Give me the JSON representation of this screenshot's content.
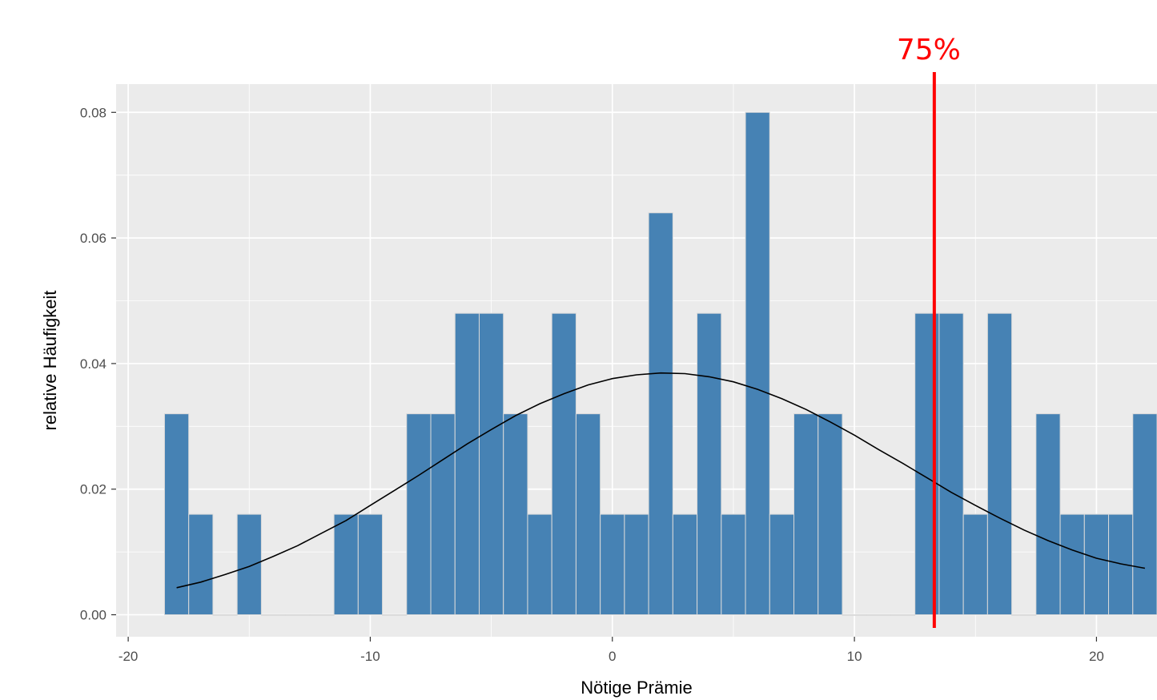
{
  "chart_data": {
    "type": "bar",
    "xlabel": "Nötige Prämie",
    "ylabel": "relative Häufigkeit",
    "xlim": [
      -20.5,
      22.5
    ],
    "ylim": [
      -0.0035,
      0.0845
    ],
    "x_ticks": [
      -20,
      -10,
      0,
      10,
      20
    ],
    "x_tick_labels": [
      "-20",
      "-10",
      "0",
      "10",
      "20"
    ],
    "y_ticks": [
      0.0,
      0.02,
      0.04,
      0.06,
      0.08
    ],
    "y_tick_labels": [
      "0.00",
      "0.02",
      "0.04",
      "0.06",
      "0.08"
    ],
    "grid": true,
    "panel_background": "#ebebeb",
    "bar_color": "#4682b4",
    "bar_edge_color": "#d9d9d9",
    "bin_width": 1,
    "bin_start": -18.5,
    "values": [
      0.032,
      0.016,
      0,
      0.016,
      0,
      0,
      0,
      0.016,
      0.016,
      0,
      0.032,
      0.032,
      0.048,
      0.048,
      0.032,
      0.016,
      0.048,
      0.032,
      0.016,
      0.016,
      0.064,
      0.016,
      0.048,
      0.016,
      0.08,
      0.016,
      0.032,
      0.032,
      0,
      0,
      0,
      0.048,
      0.048,
      0.016,
      0.048,
      0,
      0.032,
      0.016,
      0.016,
      0.016,
      0.032
    ],
    "density_curve": {
      "color": "#000000",
      "x": [
        -18,
        -17,
        -16,
        -15,
        -14,
        -13,
        -12,
        -11,
        -10,
        -9,
        -8,
        -7,
        -6,
        -5,
        -4,
        -3,
        -2,
        -1,
        0,
        1,
        2,
        3,
        4,
        5,
        6,
        7,
        8,
        9,
        10,
        11,
        12,
        13,
        14,
        15,
        16,
        17,
        18,
        19,
        20,
        21,
        22
      ],
      "y": [
        0.0043,
        0.0052,
        0.0064,
        0.0077,
        0.0093,
        0.011,
        0.013,
        0.015,
        0.0174,
        0.0198,
        0.0222,
        0.0247,
        0.0272,
        0.0295,
        0.0317,
        0.0336,
        0.0352,
        0.0366,
        0.0376,
        0.0382,
        0.0385,
        0.0384,
        0.0379,
        0.0371,
        0.0359,
        0.0344,
        0.0327,
        0.0307,
        0.0286,
        0.0263,
        0.0241,
        0.0218,
        0.0195,
        0.0174,
        0.0154,
        0.0135,
        0.0118,
        0.0103,
        0.009,
        0.0081,
        0.0074
      ]
    },
    "reference_line": {
      "x": 13.3,
      "label": "75%",
      "color": "#ff0000"
    }
  }
}
